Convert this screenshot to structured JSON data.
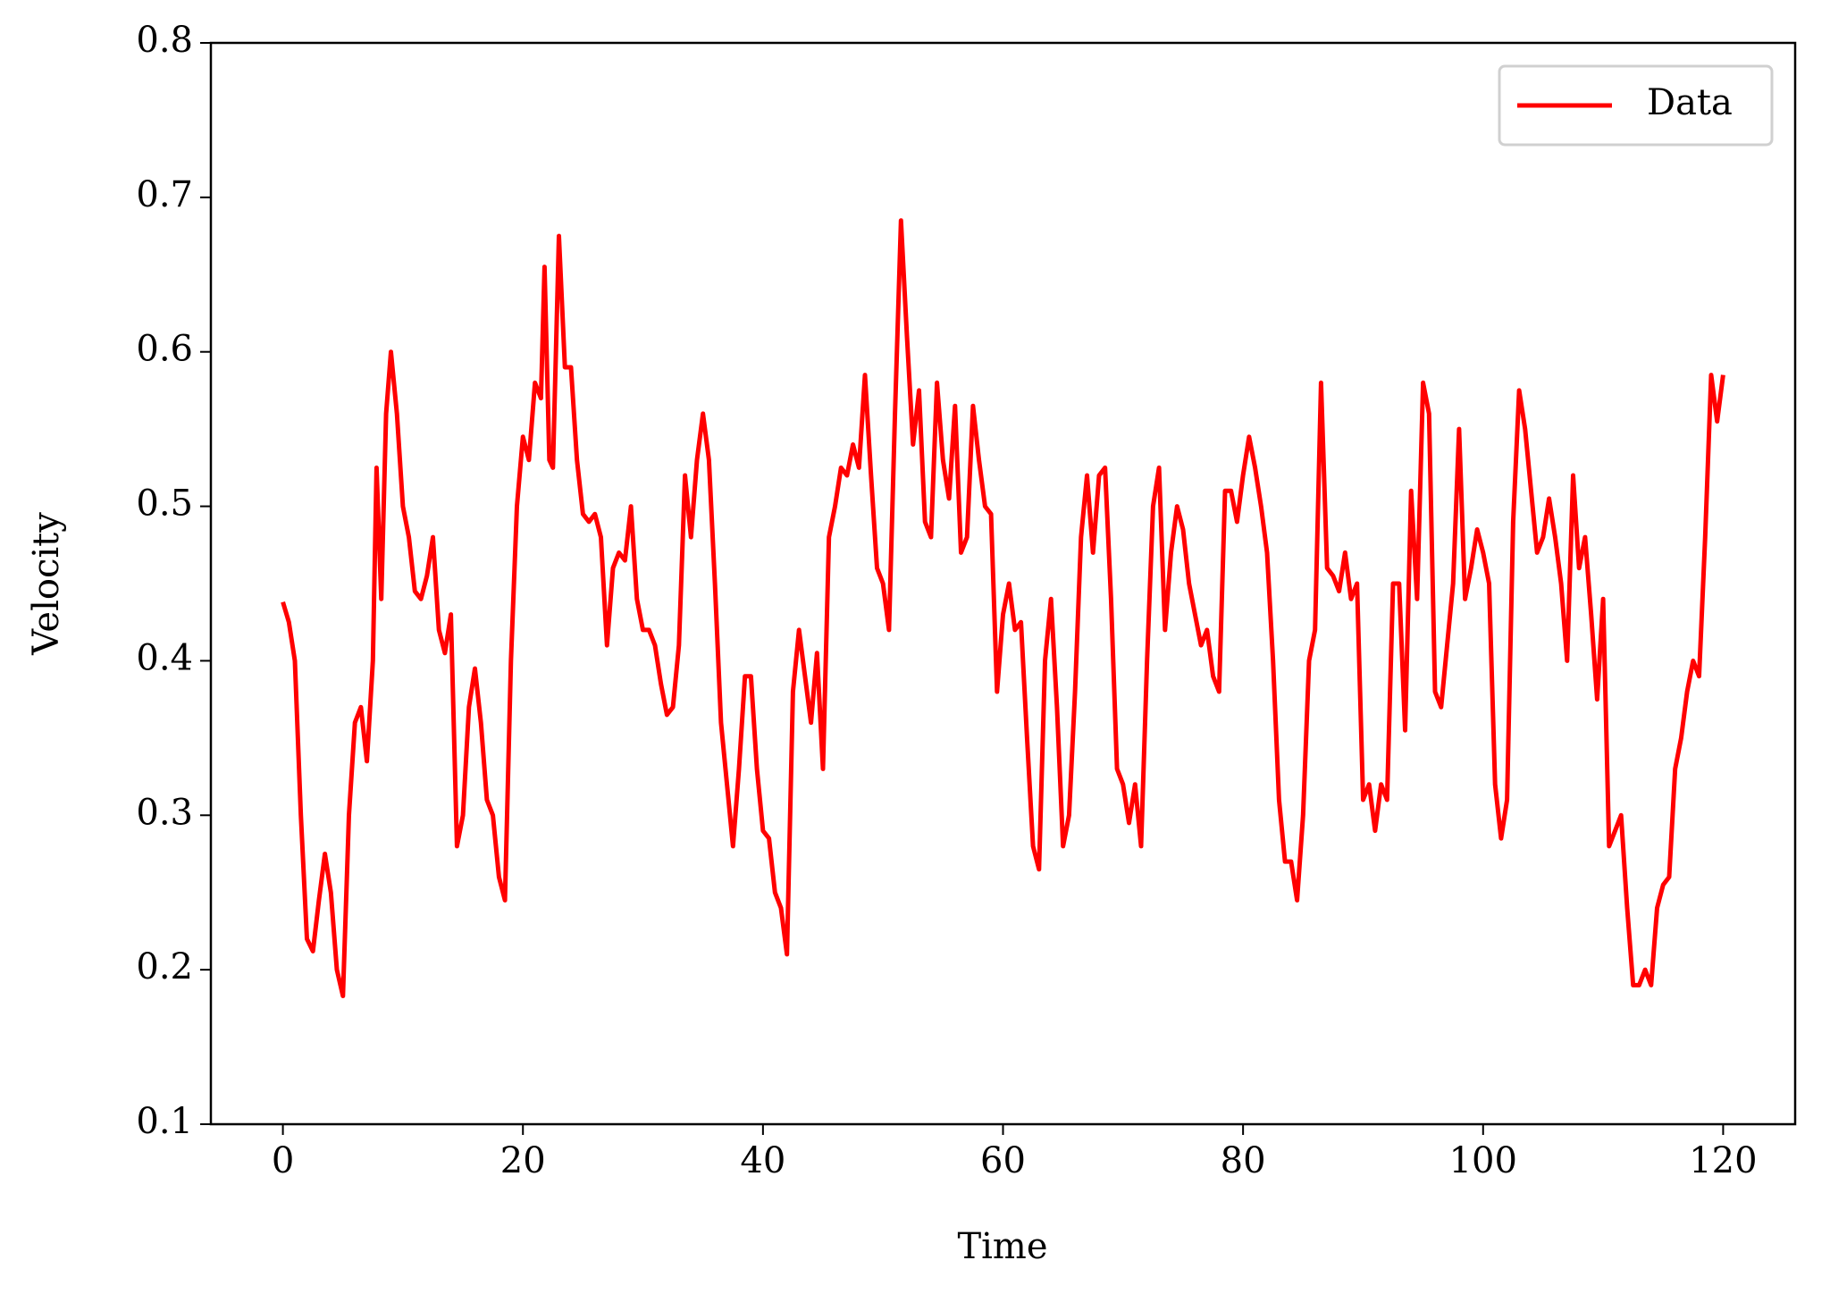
{
  "chart_data": {
    "type": "line",
    "xlabel": "Time",
    "ylabel": "Velocity",
    "xlim": [
      -6,
      126
    ],
    "ylim": [
      0.1,
      0.8
    ],
    "xticks": [
      0,
      20,
      40,
      60,
      80,
      100,
      120
    ],
    "yticks": [
      0.1,
      0.2,
      0.3,
      0.4,
      0.5,
      0.6,
      0.7,
      0.8
    ],
    "legend": "upper right",
    "x": [
      0,
      0.5,
      1,
      1.5,
      2,
      2.5,
      3,
      3.5,
      4,
      4.5,
      5,
      5.5,
      6,
      6.5,
      7,
      7.5,
      7.8,
      8.2,
      8.6,
      9,
      9.5,
      10,
      10.5,
      11,
      11.5,
      12,
      12.5,
      13,
      13.5,
      14,
      14.5,
      15,
      15.5,
      16,
      16.5,
      17,
      17.5,
      18,
      18.5,
      19,
      19.5,
      20,
      20.5,
      21,
      21.5,
      21.8,
      22.2,
      22.5,
      23,
      23.5,
      24,
      24.5,
      25,
      25.5,
      26,
      26.5,
      27,
      27.5,
      28,
      28.5,
      29,
      29.5,
      30,
      30.5,
      31,
      31.5,
      32,
      32.5,
      33,
      33.5,
      34,
      34.5,
      35,
      35.5,
      36,
      36.5,
      37,
      37.5,
      38,
      38.5,
      39,
      39.5,
      40,
      40.5,
      41,
      41.5,
      42,
      42.5,
      43,
      43.5,
      44,
      44.5,
      45,
      45.5,
      46,
      46.5,
      47,
      47.5,
      48,
      48.5,
      49,
      49.5,
      50,
      50.5,
      51,
      51.5,
      52,
      52.5,
      53,
      53.5,
      54,
      54.5,
      55,
      55.5,
      56,
      56.5,
      57,
      57.5,
      58,
      58.5,
      59,
      59.5,
      60,
      60.5,
      61,
      61.5,
      62,
      62.5,
      63,
      63.5,
      64,
      64.5,
      65,
      65.5,
      66,
      66.5,
      67,
      67.5,
      68,
      68.5,
      69,
      69.5,
      70,
      70.5,
      71,
      71.5,
      72,
      72.5,
      73,
      73.5,
      74,
      74.5,
      75,
      75.5,
      76,
      76.5,
      77,
      77.5,
      78,
      78.5,
      79,
      79.5,
      80,
      80.5,
      81,
      81.5,
      82,
      82.5,
      83,
      83.5,
      84,
      84.5,
      85,
      85.5,
      86,
      86.5,
      87,
      87.5,
      88,
      88.5,
      89,
      89.5,
      90,
      90.5,
      91,
      91.5,
      92,
      92.5,
      93,
      93.5,
      94,
      94.5,
      95,
      95.5,
      96,
      96.5,
      97,
      97.5,
      98,
      98.5,
      99,
      99.5,
      100,
      100.5,
      101,
      101.5,
      102,
      102.5,
      103,
      103.5,
      104,
      104.5,
      105,
      105.5,
      106,
      106.5,
      107,
      107.5,
      108,
      108.5,
      109,
      109.5,
      110,
      110.5,
      111,
      111.5,
      112,
      112.5,
      113,
      113.5,
      114,
      114.5,
      115,
      115.5,
      116,
      116.5,
      117,
      117.5,
      118,
      118.5,
      119,
      119.5,
      120
    ],
    "series": [
      {
        "name": "Data",
        "color": "#ff0000",
        "values": [
          0.438,
          0.425,
          0.4,
          0.3,
          0.22,
          0.212,
          0.245,
          0.275,
          0.25,
          0.2,
          0.183,
          0.3,
          0.36,
          0.37,
          0.335,
          0.4,
          0.525,
          0.44,
          0.56,
          0.6,
          0.56,
          0.5,
          0.48,
          0.445,
          0.44,
          0.455,
          0.48,
          0.42,
          0.405,
          0.43,
          0.28,
          0.3,
          0.37,
          0.395,
          0.36,
          0.31,
          0.3,
          0.26,
          0.245,
          0.4,
          0.5,
          0.545,
          0.53,
          0.58,
          0.57,
          0.655,
          0.53,
          0.525,
          0.675,
          0.59,
          0.59,
          0.53,
          0.495,
          0.49,
          0.495,
          0.48,
          0.41,
          0.46,
          0.47,
          0.465,
          0.5,
          0.44,
          0.42,
          0.42,
          0.41,
          0.385,
          0.365,
          0.37,
          0.41,
          0.52,
          0.48,
          0.53,
          0.56,
          0.53,
          0.45,
          0.36,
          0.32,
          0.28,
          0.33,
          0.39,
          0.39,
          0.33,
          0.29,
          0.285,
          0.25,
          0.24,
          0.21,
          0.38,
          0.42,
          0.39,
          0.36,
          0.405,
          0.33,
          0.48,
          0.5,
          0.525,
          0.52,
          0.54,
          0.525,
          0.585,
          0.52,
          0.46,
          0.45,
          0.42,
          0.56,
          0.685,
          0.61,
          0.54,
          0.575,
          0.49,
          0.48,
          0.58,
          0.53,
          0.505,
          0.565,
          0.47,
          0.48,
          0.565,
          0.53,
          0.5,
          0.495,
          0.38,
          0.43,
          0.45,
          0.42,
          0.425,
          0.35,
          0.28,
          0.265,
          0.4,
          0.44,
          0.37,
          0.28,
          0.3,
          0.38,
          0.48,
          0.52,
          0.47,
          0.52,
          0.525,
          0.44,
          0.33,
          0.32,
          0.295,
          0.32,
          0.28,
          0.4,
          0.5,
          0.525,
          0.42,
          0.47,
          0.5,
          0.485,
          0.45,
          0.43,
          0.41,
          0.42,
          0.39,
          0.38,
          0.51,
          0.51,
          0.49,
          0.52,
          0.545,
          0.525,
          0.5,
          0.47,
          0.4,
          0.31,
          0.27,
          0.27,
          0.245,
          0.3,
          0.4,
          0.42,
          0.58,
          0.46,
          0.455,
          0.445,
          0.47,
          0.44,
          0.45,
          0.31,
          0.32,
          0.29,
          0.32,
          0.31,
          0.45,
          0.45,
          0.355,
          0.51,
          0.44,
          0.58,
          0.56,
          0.38,
          0.37,
          0.41,
          0.45,
          0.55,
          0.44,
          0.46,
          0.485,
          0.47,
          0.45,
          0.32,
          0.285,
          0.31,
          0.49,
          0.575,
          0.55,
          0.51,
          0.47,
          0.48,
          0.505,
          0.48,
          0.45,
          0.4,
          0.52,
          0.46,
          0.48,
          0.43,
          0.375,
          0.44,
          0.28,
          0.29,
          0.3,
          0.24,
          0.19,
          0.19,
          0.2,
          0.19,
          0.24,
          0.255,
          0.26,
          0.33,
          0.35,
          0.38,
          0.4,
          0.39,
          0.48,
          0.585,
          0.555,
          0.585
        ]
      }
    ]
  }
}
